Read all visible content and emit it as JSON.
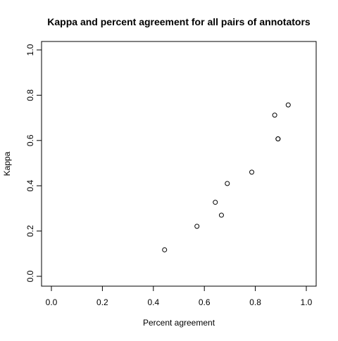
{
  "chart_data": {
    "type": "scatter",
    "title": "Kappa and percent agreement for all pairs of annotators",
    "xlabel": "Percent agreement",
    "ylabel": "Kappa",
    "xlim": [
      0.0,
      1.0
    ],
    "ylim": [
      0.0,
      1.0
    ],
    "xticks": [
      "0.0",
      "0.2",
      "0.4",
      "0.6",
      "0.8",
      "1.0"
    ],
    "yticks": [
      "0.0",
      "0.2",
      "0.4",
      "0.6",
      "0.8",
      "1.0"
    ],
    "grid": false,
    "marker": "open-circle",
    "points": [
      {
        "x": 0.444,
        "y": 0.117
      },
      {
        "x": 0.571,
        "y": 0.221
      },
      {
        "x": 0.643,
        "y": 0.327
      },
      {
        "x": 0.667,
        "y": 0.27
      },
      {
        "x": 0.69,
        "y": 0.41
      },
      {
        "x": 0.786,
        "y": 0.46
      },
      {
        "x": 0.876,
        "y": 0.712
      },
      {
        "x": 0.889,
        "y": 0.607
      },
      {
        "x": 0.889,
        "y": 0.607
      },
      {
        "x": 0.929,
        "y": 0.757
      }
    ]
  }
}
